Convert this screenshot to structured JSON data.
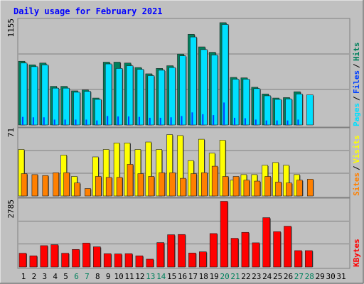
{
  "title": "Daily usage for February 2021",
  "colors": {
    "background": "#c0c0c0",
    "panel": "#c0c0c0",
    "hits": "#00805c",
    "files": "#0040ff",
    "pages": "#00e0ff",
    "visits": "#ffff00",
    "sites": "#ff8000",
    "kbytes": "#ff0000",
    "weekend": "#00805c",
    "title_text": "#0000ff"
  },
  "chart_data": [
    {
      "type": "bar",
      "name": "hits-files-pages",
      "ymax_label": "1155",
      "ylim": [
        0,
        1155
      ],
      "legend": [
        "Hits",
        "Files",
        "Pages"
      ],
      "categories": [
        "1",
        "2",
        "3",
        "4",
        "5",
        "6",
        "7",
        "8",
        "9",
        "10",
        "11",
        "12",
        "13",
        "14",
        "15",
        "16",
        "17",
        "18",
        "19",
        "20",
        "21",
        "22",
        "23",
        "24",
        "25",
        "26",
        "27",
        "28",
        "29",
        "30",
        "31"
      ],
      "series": [
        {
          "name": "Hits",
          "values": [
            710,
            670,
            690,
            430,
            430,
            380,
            390,
            300,
            700,
            700,
            690,
            640,
            570,
            630,
            660,
            790,
            1010,
            870,
            810,
            1140,
            530,
            525,
            420,
            345,
            300,
            305,
            370,
            0,
            0,
            0,
            0
          ]
        },
        {
          "name": "Files",
          "values": [
            90,
            85,
            85,
            60,
            60,
            60,
            60,
            50,
            100,
            95,
            95,
            90,
            80,
            80,
            85,
            100,
            140,
            120,
            110,
            250,
            80,
            75,
            60,
            50,
            50,
            50,
            60,
            0,
            0,
            0,
            0
          ]
        },
        {
          "name": "Pages",
          "values": [
            690,
            650,
            670,
            410,
            410,
            365,
            375,
            285,
            680,
            630,
            660,
            620,
            550,
            610,
            640,
            770,
            980,
            840,
            780,
            1120,
            510,
            510,
            405,
            325,
            285,
            290,
            345,
            335,
            0,
            0,
            0
          ]
        }
      ]
    },
    {
      "type": "bar",
      "name": "visits-sites",
      "ymax_label": "71",
      "ylim": [
        0,
        71
      ],
      "legend": [
        "Visits",
        "Sites"
      ],
      "categories": [
        "1",
        "2",
        "3",
        "4",
        "5",
        "6",
        "7",
        "8",
        "9",
        "10",
        "11",
        "12",
        "13",
        "14",
        "15",
        "16",
        "17",
        "18",
        "19",
        "20",
        "21",
        "22",
        "23",
        "24",
        "25",
        "26",
        "27",
        "28",
        "29",
        "30",
        "31"
      ],
      "series": [
        {
          "name": "Visits",
          "values": [
            50,
            0,
            0,
            0,
            44,
            21,
            0,
            42,
            50,
            57,
            57,
            50,
            58,
            50,
            66,
            65,
            38,
            61,
            46,
            60,
            17,
            23,
            23,
            33,
            36,
            33,
            23,
            0,
            0,
            0,
            0
          ]
        },
        {
          "name": "Sites",
          "values": [
            24,
            23,
            22,
            25,
            25,
            14,
            8,
            21,
            20,
            20,
            34,
            24,
            21,
            25,
            25,
            19,
            24,
            25,
            32,
            21,
            21,
            17,
            16,
            21,
            15,
            14,
            17,
            18,
            0,
            0,
            0
          ]
        }
      ]
    },
    {
      "type": "bar",
      "name": "kbytes",
      "ymax_label": "2785",
      "ylim": [
        0,
        2785
      ],
      "legend": [
        "KBytes"
      ],
      "categories": [
        "1",
        "2",
        "3",
        "4",
        "5",
        "6",
        "7",
        "8",
        "9",
        "10",
        "11",
        "12",
        "13",
        "14",
        "15",
        "16",
        "17",
        "18",
        "19",
        "20",
        "21",
        "22",
        "23",
        "24",
        "25",
        "26",
        "27",
        "28",
        "29",
        "30",
        "31"
      ],
      "series": [
        {
          "name": "KBytes",
          "values": [
            580,
            470,
            900,
            940,
            580,
            740,
            1010,
            850,
            560,
            550,
            560,
            470,
            330,
            1030,
            1360,
            1370,
            590,
            640,
            1410,
            2770,
            1210,
            1460,
            1020,
            2080,
            1490,
            1720,
            690,
            690,
            0,
            0,
            0
          ]
        }
      ]
    }
  ],
  "x_labels": [
    "1",
    "2",
    "3",
    "4",
    "5",
    "6",
    "7",
    "8",
    "9",
    "10",
    "11",
    "12",
    "13",
    "14",
    "15",
    "16",
    "17",
    "18",
    "19",
    "20",
    "21",
    "22",
    "23",
    "24",
    "25",
    "26",
    "27",
    "28",
    "29",
    "30",
    "31"
  ],
  "weekend_days": [
    "6",
    "7",
    "13",
    "14",
    "20",
    "21",
    "27",
    "28"
  ]
}
